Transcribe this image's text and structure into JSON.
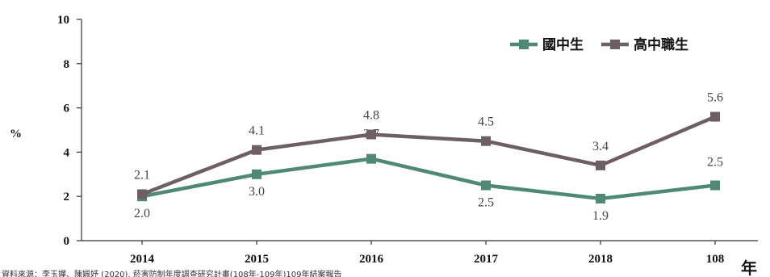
{
  "chart_data": {
    "type": "line",
    "categories": [
      "2014",
      "2015",
      "2016",
      "2017",
      "2018",
      "108"
    ],
    "series": [
      {
        "name": "國中生",
        "values": [
          2.0,
          3.0,
          3.7,
          2.5,
          1.9,
          2.5
        ],
        "labels": [
          "2.0",
          "3.0",
          "3.7",
          "2.5",
          "1.9",
          "2.5"
        ],
        "color": "#4e8a73"
      },
      {
        "name": "高中職生",
        "values": [
          2.1,
          4.1,
          4.8,
          4.5,
          3.4,
          5.6
        ],
        "labels": [
          "2.1",
          "4.1",
          "4.8",
          "4.5",
          "3.4",
          "5.6"
        ],
        "color": "#6d5f63"
      }
    ],
    "yticks": [
      0,
      2,
      4,
      6,
      8,
      10
    ],
    "ylim": [
      0,
      10
    ],
    "ylabel": "%",
    "xlabel": "年",
    "legend": "top-right",
    "grid": false
  },
  "source_note": "資料來源：李玉嬋、陳姵妤 (2020). 菸害防制年度調查研究計畫(108年-109年)109年結案報告"
}
